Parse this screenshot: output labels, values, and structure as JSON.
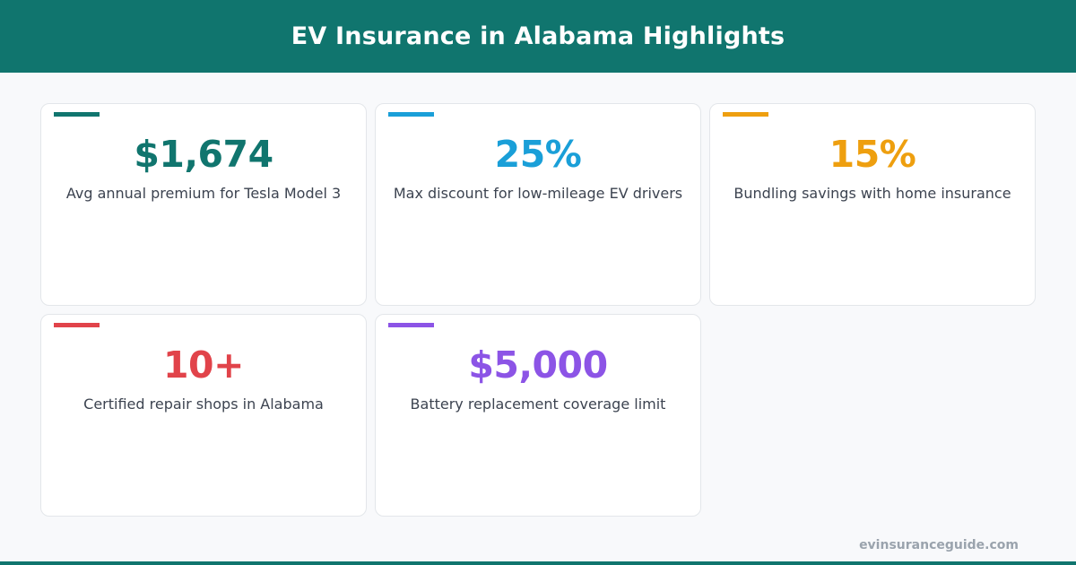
{
  "header": {
    "title": "EV Insurance in Alabama Highlights"
  },
  "colors": {
    "header_bg": "#10756e",
    "teal": "#10756e",
    "blue": "#1a9fd8",
    "amber": "#ee9f0f",
    "red": "#e1434a",
    "purple": "#8c54e6"
  },
  "stats": [
    {
      "value": "$1,674",
      "label": "Avg annual premium for Tesla Model 3",
      "color": "#10756e"
    },
    {
      "value": "25%",
      "label": "Max discount for low-mileage EV drivers",
      "color": "#1a9fd8"
    },
    {
      "value": "15%",
      "label": "Bundling savings with home insurance",
      "color": "#ee9f0f"
    },
    {
      "value": "10+",
      "label": "Certified repair shops in Alabama",
      "color": "#e1434a"
    },
    {
      "value": "$5,000",
      "label": "Battery replacement coverage limit",
      "color": "#8c54e6"
    }
  ],
  "footer": {
    "site": "evinsuranceguide.com"
  }
}
